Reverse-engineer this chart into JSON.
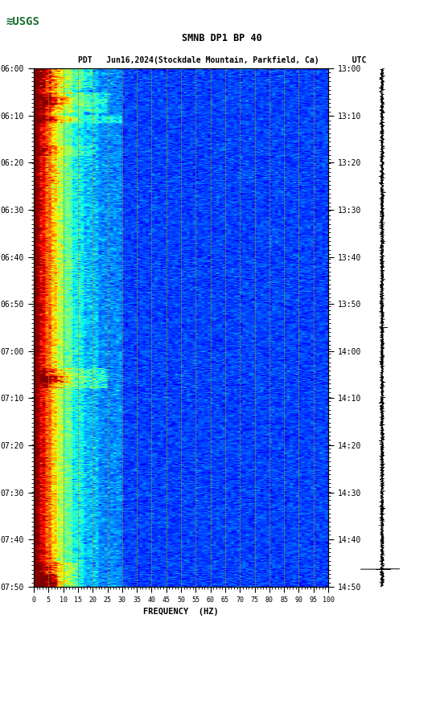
{
  "title_line1": "SMNB DP1 BP 40",
  "title_line2": "PDT   Jun16,2024(Stockdale Mountain, Parkfield, Ca)       UTC",
  "xlabel": "FREQUENCY  (HZ)",
  "left_yticks": [
    "06:00",
    "06:10",
    "06:20",
    "06:30",
    "06:40",
    "06:50",
    "07:00",
    "07:10",
    "07:20",
    "07:30",
    "07:40",
    "07:50"
  ],
  "right_yticks": [
    "13:00",
    "13:10",
    "13:20",
    "13:30",
    "13:40",
    "13:50",
    "14:00",
    "14:10",
    "14:20",
    "14:30",
    "14:40",
    "14:50"
  ],
  "freq_ticks": [
    0,
    5,
    10,
    15,
    20,
    25,
    30,
    35,
    40,
    45,
    50,
    55,
    60,
    65,
    70,
    75,
    80,
    85,
    90,
    95,
    100
  ],
  "vlines_freq": [
    5,
    10,
    15,
    20,
    25,
    30,
    35,
    40,
    45,
    50,
    55,
    60,
    65,
    70,
    75,
    80,
    85,
    90,
    95
  ],
  "vline_color": "#B8860B",
  "fig_bg": "#FFFFFF",
  "colormap": "jet",
  "vmin": 0,
  "vmax": 1,
  "n_time": 640,
  "n_freq": 100
}
